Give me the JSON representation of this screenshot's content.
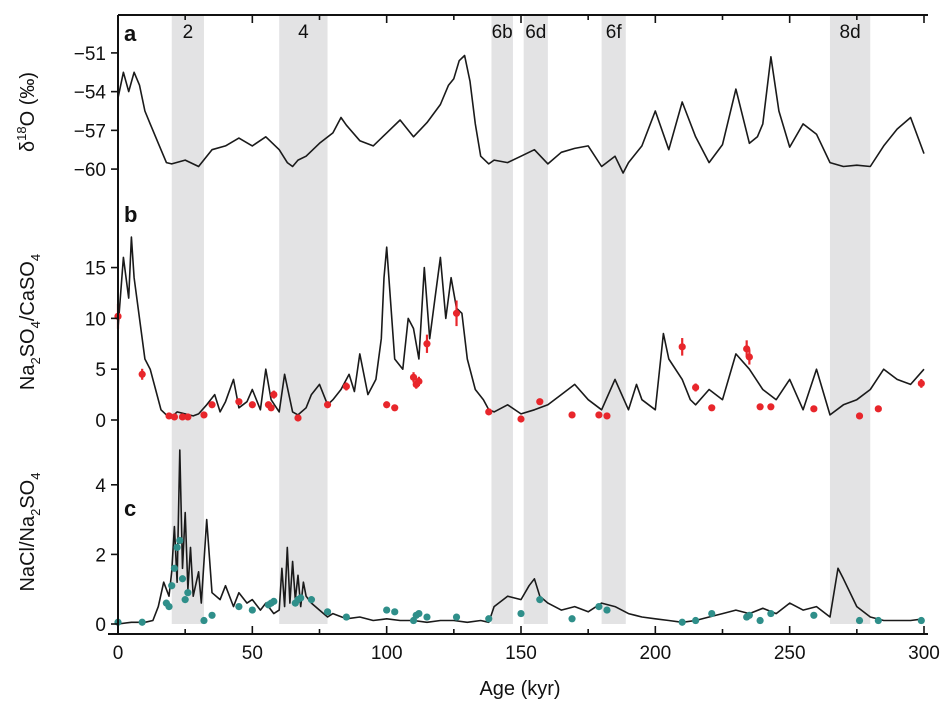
{
  "chart_data": {
    "type": "line",
    "x_axis": {
      "label": "Age (kyr)",
      "range": [
        0,
        300
      ],
      "ticks": [
        "0",
        "50",
        "100",
        "150",
        "200",
        "250",
        "300"
      ],
      "tick_values": [
        0,
        50,
        100,
        150,
        200,
        250,
        300
      ]
    },
    "shaded_stages": [
      {
        "label": "2",
        "start": 20,
        "end": 32
      },
      {
        "label": "4",
        "start": 60,
        "end": 78
      },
      {
        "label": "6b",
        "start": 139,
        "end": 147
      },
      {
        "label": "6d",
        "start": 151,
        "end": 160
      },
      {
        "label": "6f",
        "start": 180,
        "end": 189
      },
      {
        "label": "8d",
        "start": 265,
        "end": 280
      }
    ],
    "panels": [
      {
        "id": "a",
        "ylabel_main": "δ",
        "ylabel_sup": "18",
        "ylabel_rest": "O (‰)",
        "ylim": [
          -61,
          -50
        ],
        "yticks": [
          "-51",
          "-54",
          "-57",
          "-60"
        ],
        "ytick_values": [
          -51,
          -54,
          -57,
          -60
        ],
        "series": [
          {
            "name": "δ18O",
            "x": [
              0,
              2,
              4,
              6,
              8,
              10,
              12,
              15,
              18,
              20,
              25,
              30,
              35,
              40,
              45,
              50,
              55,
              60,
              63,
              65,
              67,
              70,
              75,
              80,
              83,
              85,
              90,
              95,
              100,
              105,
              110,
              115,
              120,
              123,
              125,
              127,
              129,
              131,
              133,
              135,
              138,
              140,
              145,
              150,
              155,
              160,
              165,
              170,
              175,
              180,
              185,
              188,
              190,
              195,
              200,
              205,
              210,
              215,
              220,
              225,
              230,
              235,
              238,
              240,
              243,
              246,
              250,
              255,
              260,
              265,
              270,
              275,
              280,
              285,
              290,
              295,
              300
            ],
            "y": [
              -54.5,
              -52.5,
              -54,
              -52.5,
              -53.5,
              -55.5,
              -56.5,
              -58,
              -59.5,
              -59.6,
              -59.3,
              -59.8,
              -58.5,
              -58.2,
              -57.6,
              -58.2,
              -57.5,
              -58.5,
              -59.5,
              -59.8,
              -59.3,
              -59,
              -58,
              -57.2,
              -56,
              -56.6,
              -57.8,
              -58.2,
              -57.2,
              -56.2,
              -57.5,
              -56.4,
              -55,
              -53.5,
              -53,
              -51.6,
              -51.2,
              -53.2,
              -56.5,
              -59,
              -59.6,
              -59.3,
              -59.5,
              -59,
              -58.5,
              -59.6,
              -58.7,
              -58.4,
              -58.2,
              -59.8,
              -59,
              -60.3,
              -59.5,
              -58.2,
              -55.5,
              -58.5,
              -54.8,
              -57.5,
              -59.5,
              -58.1,
              -53.8,
              -58,
              -57.5,
              -56.5,
              -51.3,
              -55.5,
              -58.3,
              -56.5,
              -57.3,
              -59.5,
              -59.8,
              -59.7,
              -59.8,
              -58.2,
              -56.9,
              -56,
              -58.8
            ]
          }
        ]
      },
      {
        "id": "b",
        "ylabel_main": "Na",
        "ylabel_sub1": "2",
        "ylabel_mid": "SO",
        "ylabel_sub2": "4",
        "ylabel_mid2": "/CaSO",
        "ylabel_sub3": "4",
        "ylim": [
          0,
          18.5
        ],
        "yticks": [
          "0",
          "5",
          "10",
          "15"
        ],
        "ytick_values": [
          0,
          5,
          10,
          15
        ],
        "series": [
          {
            "name": "Na2SO4/CaSO4 (line)",
            "x": [
              0,
              2,
              4,
              5,
              6,
              8,
              10,
              12,
              14,
              16,
              18,
              20,
              22,
              25,
              28,
              30,
              33,
              36,
              38,
              40,
              43,
              45,
              48,
              50,
              53,
              55,
              57,
              60,
              62,
              65,
              67,
              70,
              72,
              75,
              78,
              80,
              83,
              86,
              88,
              90,
              93,
              96,
              98,
              99,
              100,
              103,
              106,
              108,
              110,
              112,
              114,
              116,
              118,
              120,
              122,
              124,
              126,
              128,
              130,
              133,
              136,
              138,
              140,
              145,
              150,
              155,
              160,
              165,
              170,
              175,
              180,
              185,
              190,
              193,
              195,
              200,
              203,
              205,
              210,
              213,
              215,
              220,
              225,
              230,
              235,
              240,
              245,
              250,
              255,
              260,
              265,
              270,
              275,
              280,
              285,
              290,
              295,
              300
            ],
            "y": [
              9,
              16,
              12,
              18,
              14,
              10,
              6,
              5,
              3,
              1,
              0.5,
              0.3,
              0.8,
              0.6,
              0.4,
              0.6,
              1.5,
              2.5,
              0.8,
              1.8,
              4,
              1.2,
              1.8,
              3,
              1,
              5,
              2,
              0.8,
              4.5,
              0.8,
              0.5,
              1.2,
              2.5,
              3.5,
              1.5,
              2,
              3,
              4.5,
              2.8,
              6.5,
              2.5,
              4,
              8,
              14,
              17,
              6,
              5,
              10,
              9,
              6,
              15,
              8,
              12,
              16,
              10,
              14,
              11,
              10.5,
              6,
              3,
              2,
              1,
              0.8,
              1.5,
              0.6,
              1,
              1.5,
              2.5,
              3.5,
              2,
              1,
              4,
              1,
              3.5,
              2,
              1,
              8.5,
              6,
              4,
              2,
              1.5,
              3,
              2,
              6.5,
              5,
              3,
              2,
              4,
              1,
              5,
              0.5,
              1.5,
              2,
              3,
              5,
              4,
              3.5,
              5
            ]
          },
          {
            "name": "Na2SO4/CaSO4 (points)",
            "x": [
              0,
              9,
              19,
              21,
              24,
              26,
              32,
              35,
              45,
              50,
              56,
              57,
              58,
              67,
              78,
              85,
              100,
              103,
              110,
              111,
              112,
              115,
              126,
              138,
              150,
              157,
              169,
              179,
              182,
              210,
              215,
              221,
              234,
              235,
              239,
              243,
              259,
              276,
              283,
              299
            ],
            "y": [
              10.2,
              4.5,
              0.4,
              0.3,
              0.3,
              0.3,
              0.5,
              1.5,
              1.8,
              1.5,
              1.5,
              1.2,
              2.5,
              0.2,
              1.5,
              3.3,
              1.5,
              1.2,
              4.2,
              3.5,
              3.8,
              7.5,
              10.5,
              0.8,
              0.1,
              1.8,
              0.5,
              0.5,
              0.4,
              7.2,
              3.2,
              1.2,
              7,
              6.2,
              1.3,
              1.3,
              1.1,
              0.4,
              1.1,
              3.6
            ]
          }
        ]
      },
      {
        "id": "c",
        "ylabel_main": "NaCl/Na",
        "ylabel_sub1": "2",
        "ylabel_mid": "SO",
        "ylabel_sub2": "4",
        "ylim": [
          0,
          5
        ],
        "yticks": [
          "0",
          "2",
          "4"
        ],
        "ytick_values": [
          0,
          2,
          4
        ],
        "series": [
          {
            "name": "NaCl/Na2SO4 (line)",
            "x": [
              0,
              5,
              10,
              13,
              15,
              17,
              19,
              20,
              21,
              22,
              23,
              24,
              25,
              26,
              27,
              28,
              30,
              31,
              33,
              35,
              38,
              40,
              43,
              45,
              48,
              50,
              53,
              55,
              58,
              60,
              61,
              62,
              63,
              64,
              65,
              66,
              67,
              68,
              69,
              70,
              72,
              75,
              78,
              80,
              85,
              90,
              95,
              100,
              105,
              110,
              115,
              120,
              125,
              130,
              135,
              138,
              140,
              145,
              150,
              153,
              155,
              157,
              160,
              165,
              170,
              175,
              180,
              185,
              190,
              195,
              200,
              205,
              210,
              215,
              220,
              225,
              230,
              235,
              240,
              245,
              250,
              255,
              260,
              265,
              268,
              270,
              275,
              280,
              285,
              290,
              295,
              300
            ],
            "y": [
              0,
              0.05,
              0.05,
              0.1,
              0.5,
              1.2,
              0.8,
              1.5,
              2.8,
              1.2,
              5,
              1.6,
              3.2,
              1,
              2.2,
              0.8,
              1.5,
              0.6,
              3,
              0.9,
              0.7,
              1.1,
              0.5,
              0.9,
              0.6,
              0.7,
              0.4,
              0.6,
              0.3,
              0.4,
              1.6,
              0.5,
              2.2,
              0.6,
              1.8,
              0.7,
              1.4,
              0.5,
              1.2,
              0.8,
              0.6,
              0.4,
              0.2,
              0.3,
              0.15,
              0.2,
              0.1,
              0.15,
              0.1,
              0.1,
              0.05,
              0.1,
              0.1,
              0.05,
              0.1,
              0.05,
              0.5,
              0.8,
              0.7,
              1.1,
              1.3,
              0.8,
              0.6,
              0.4,
              0.5,
              0.35,
              0.6,
              0.5,
              0.3,
              0.2,
              0.15,
              0.1,
              0.05,
              0.1,
              0.2,
              0.3,
              0.4,
              0.3,
              0.45,
              0.3,
              0.6,
              0.4,
              0.5,
              0.2,
              1.6,
              1.3,
              0.5,
              0.2,
              0.1,
              0.1,
              0.1,
              0.15
            ]
          },
          {
            "name": "NaCl/Na2SO4 (points)",
            "x": [
              0,
              9,
              18,
              19,
              20,
              21,
              22,
              23,
              24,
              25,
              26,
              32,
              35,
              45,
              50,
              56,
              57,
              58,
              66,
              67,
              68,
              72,
              78,
              85,
              100,
              103,
              110,
              111,
              112,
              115,
              126,
              138,
              150,
              157,
              169,
              179,
              182,
              210,
              215,
              221,
              234,
              235,
              239,
              243,
              259,
              276,
              283,
              299
            ],
            "y": [
              0.05,
              0.05,
              0.6,
              0.5,
              1.1,
              1.6,
              2.2,
              2.4,
              1.3,
              0.7,
              0.9,
              0.1,
              0.25,
              0.5,
              0.4,
              0.55,
              0.6,
              0.65,
              0.6,
              0.7,
              0.75,
              0.7,
              0.35,
              0.2,
              0.4,
              0.35,
              0.1,
              0.25,
              0.3,
              0.2,
              0.2,
              0.15,
              0.3,
              0.7,
              0.15,
              0.5,
              0.4,
              0.05,
              0.1,
              0.3,
              0.2,
              0.25,
              0.1,
              0.3,
              0.25,
              0.1,
              0.1,
              0.1
            ]
          }
        ]
      }
    ]
  },
  "colors": {
    "line": "#1a1a1a",
    "shade": "#e3e3e4",
    "points_b": "#e8262b",
    "points_c": "#2f8f8a"
  }
}
